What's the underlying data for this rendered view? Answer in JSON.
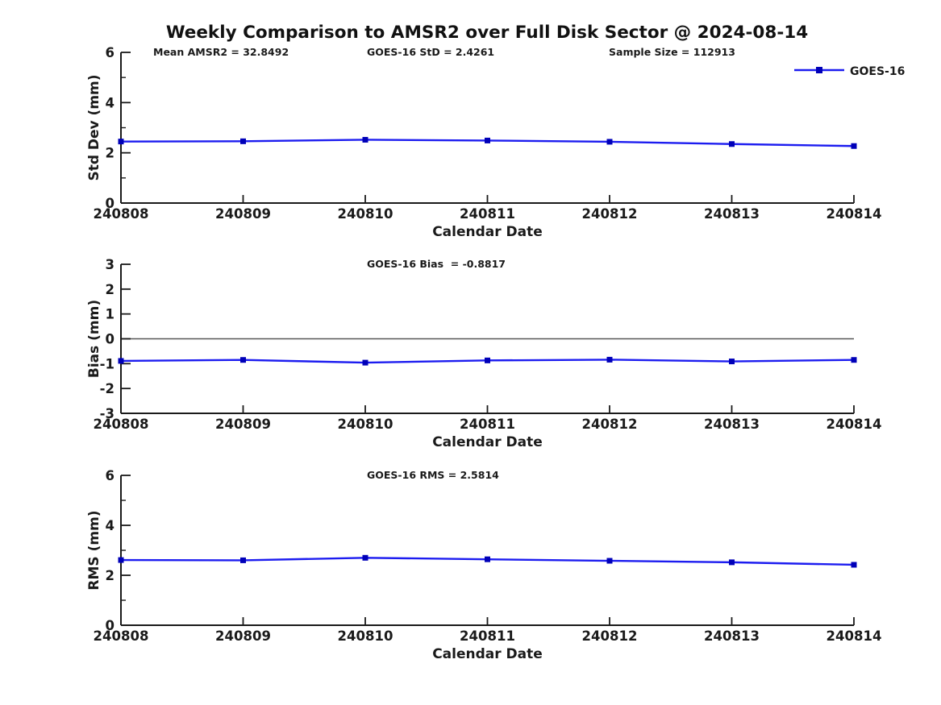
{
  "title": "Weekly Comparison to AMSR2 over Full Disk Sector @ 2024-08-14",
  "colors": {
    "line": "#1c1cf0",
    "marker": "#0000b8",
    "zero_line": "#555555",
    "axis": "#1a1a1a"
  },
  "chart_data": [
    {
      "type": "line",
      "name": "stddev",
      "ylabel": "Std Dev (mm)",
      "xlabel": "Calendar Date",
      "categories": [
        "240808",
        "240809",
        "240810",
        "240811",
        "240812",
        "240813",
        "240814"
      ],
      "series": [
        {
          "name": "GOES-16",
          "values": [
            2.45,
            2.46,
            2.52,
            2.49,
            2.44,
            2.35,
            2.27
          ]
        }
      ],
      "ylim": [
        0,
        6
      ],
      "yticks": [
        0,
        2,
        4,
        6
      ],
      "yminor": [
        1,
        3,
        5
      ],
      "annotations": [
        "Mean AMSR2 = 32.8492",
        "GOES-16 StD = 2.4261",
        "Sample Size = 112913"
      ],
      "legend": "GOES-16",
      "legend_position": "top-right",
      "zero_line": false,
      "grid": false
    },
    {
      "type": "line",
      "name": "bias",
      "ylabel": "Bias (mm)",
      "xlabel": "Calendar Date",
      "categories": [
        "240808",
        "240809",
        "240810",
        "240811",
        "240812",
        "240813",
        "240814"
      ],
      "series": [
        {
          "name": "GOES-16",
          "values": [
            -0.89,
            -0.85,
            -0.96,
            -0.87,
            -0.84,
            -0.91,
            -0.85
          ]
        }
      ],
      "ylim": [
        -3,
        3
      ],
      "yticks": [
        3,
        2,
        1,
        0,
        -1,
        -2,
        -3
      ],
      "yminor": [],
      "annotations": [
        "GOES-16 Bias  = -0.8817"
      ],
      "legend": null,
      "zero_line": true,
      "grid": false
    },
    {
      "type": "line",
      "name": "rms",
      "ylabel": "RMS (mm)",
      "xlabel": "Calendar Date",
      "categories": [
        "240808",
        "240809",
        "240810",
        "240811",
        "240812",
        "240813",
        "240814"
      ],
      "series": [
        {
          "name": "GOES-16",
          "values": [
            2.61,
            2.6,
            2.7,
            2.64,
            2.58,
            2.52,
            2.42
          ]
        }
      ],
      "ylim": [
        0,
        6
      ],
      "yticks": [
        0,
        2,
        4,
        6
      ],
      "yminor": [
        1,
        3,
        5
      ],
      "annotations": [
        "GOES-16 RMS = 2.5814"
      ],
      "legend": null,
      "zero_line": false,
      "grid": false
    }
  ]
}
